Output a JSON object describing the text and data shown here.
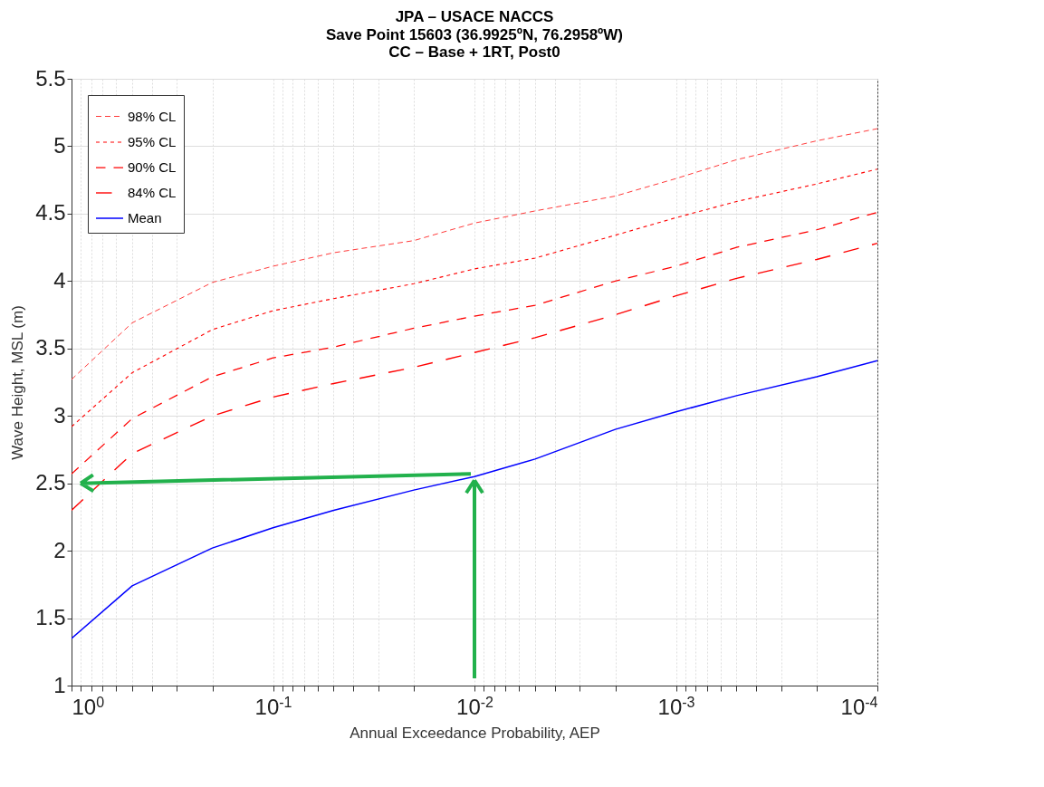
{
  "chart_data": {
    "type": "line",
    "title": "JPA – USACE NACCS",
    "subtitle": "Save Point 15603 (36.9925ºN, 76.2958ºW)\nCC – Base + 1RT, Post0",
    "xlabel": "Annual Exceedance Probability, AEP",
    "ylabel": "Wave Height, MSL (m)",
    "x": [
      1,
      0.5,
      0.2,
      0.1,
      0.05,
      0.02,
      0.01,
      0.005,
      0.002,
      0.001,
      0.0005,
      0.0002,
      0.0001
    ],
    "series": [
      {
        "name": "98% CL",
        "color": "#ff3b3b",
        "line_style": "dashed",
        "values": [
          3.27,
          3.69,
          3.99,
          4.11,
          4.21,
          4.3,
          4.43,
          4.52,
          4.63,
          4.76,
          4.9,
          5.04,
          5.13
        ]
      },
      {
        "name": "95% CL",
        "color": "#ff0000",
        "line_style": "dotted",
        "values": [
          2.92,
          3.32,
          3.64,
          3.78,
          3.87,
          3.98,
          4.09,
          4.17,
          4.34,
          4.47,
          4.59,
          4.72,
          4.83
        ]
      },
      {
        "name": "90% CL",
        "color": "#ff0000",
        "line_style": "dashed",
        "values": [
          2.57,
          2.98,
          3.29,
          3.43,
          3.51,
          3.65,
          3.74,
          3.82,
          4.0,
          4.11,
          4.25,
          4.38,
          4.51
        ]
      },
      {
        "name": "84% CL",
        "color": "#ff0000",
        "line_style": "dashed",
        "values": [
          2.3,
          2.72,
          3.0,
          3.14,
          3.24,
          3.36,
          3.47,
          3.58,
          3.75,
          3.89,
          4.02,
          4.16,
          4.28
        ]
      },
      {
        "name": "Mean",
        "color": "#0000ff",
        "line_style": "solid",
        "values": [
          1.35,
          1.74,
          2.02,
          2.17,
          2.3,
          2.45,
          2.55,
          2.68,
          2.9,
          3.03,
          3.15,
          3.29,
          3.41
        ]
      }
    ],
    "log": "x",
    "xlim": [
      1,
      0.0001
    ],
    "xticks": [
      {
        "value": 1,
        "label": "10$^{0}$"
      },
      {
        "value": 0.9,
        "label": null
      },
      {
        "value": 0.8,
        "label": null
      },
      {
        "value": 0.7,
        "label": null
      },
      {
        "value": 0.6,
        "label": null
      },
      {
        "value": 0.5,
        "label": null
      },
      {
        "value": 0.4,
        "label": null
      },
      {
        "value": 0.3,
        "label": null
      },
      {
        "value": 0.2,
        "label": null
      },
      {
        "value": 0.1,
        "label": "10$^{-1}$"
      },
      {
        "value": 0.09,
        "label": null
      },
      {
        "value": 0.08,
        "label": null
      },
      {
        "value": 0.07,
        "label": null
      },
      {
        "value": 0.06,
        "label": null
      },
      {
        "value": 0.05,
        "label": null
      },
      {
        "value": 0.04,
        "label": null
      },
      {
        "value": 0.03,
        "label": null
      },
      {
        "value": 0.02,
        "label": null
      },
      {
        "value": 0.01,
        "label": "10$^{-2}$"
      },
      {
        "value": 0.009,
        "label": null
      },
      {
        "value": 0.008,
        "label": null
      },
      {
        "value": 0.007,
        "label": null
      },
      {
        "value": 0.006,
        "label": null
      },
      {
        "value": 0.005,
        "label": null
      },
      {
        "value": 0.004,
        "label": null
      },
      {
        "value": 0.003,
        "label": null
      },
      {
        "value": 0.002,
        "label": null
      },
      {
        "value": 0.001,
        "label": "10$^{-3}$"
      },
      {
        "value": 0.0009,
        "label": null
      },
      {
        "value": 0.0008,
        "label": null
      },
      {
        "value": 0.0007,
        "label": null
      },
      {
        "value": 0.0006,
        "label": null
      },
      {
        "value": 0.0005,
        "label": null
      },
      {
        "value": 0.0004,
        "label": null
      },
      {
        "value": 0.0003,
        "label": null
      },
      {
        "value": 0.0002,
        "label": null
      },
      {
        "value": 0.0001,
        "label": "10$^{-4}$"
      }
    ],
    "ylim": [
      1,
      5.5
    ],
    "yticks": [
      1,
      1.5,
      2,
      2.5,
      3,
      3.5,
      4,
      4.5,
      5,
      5.5
    ],
    "grid": true,
    "legend": "top left"
  }
}
